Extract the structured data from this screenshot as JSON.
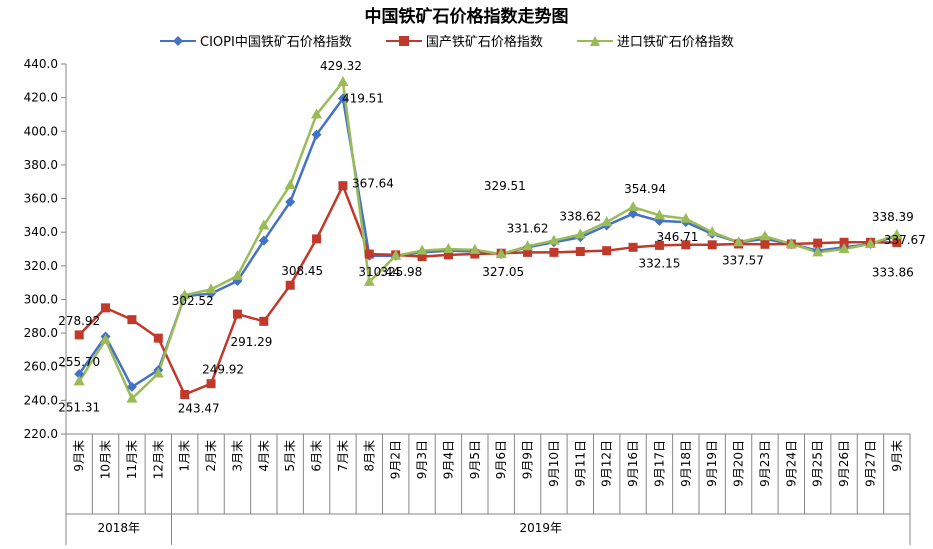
{
  "chart_data": {
    "type": "line",
    "title": "中国铁矿石价格指数走势图",
    "xlabel": "",
    "ylabel": "",
    "ylim": [
      220,
      440
    ],
    "yticks": [
      "220.0",
      "240.0",
      "260.0",
      "280.0",
      "300.0",
      "320.0",
      "340.0",
      "360.0",
      "380.0",
      "400.0",
      "420.0",
      "440.0"
    ],
    "grid": false,
    "legend_position": "top",
    "categories": [
      "9月末",
      "10月末",
      "11月末",
      "12月末",
      "1月末",
      "2月末",
      "3月末",
      "4月末",
      "5月末",
      "6月末",
      "7月末",
      "8月末",
      "9月2日",
      "9月3日",
      "9月4日",
      "9月5日",
      "9月6日",
      "9月9日",
      "9月10日",
      "9月11日",
      "9月12日",
      "9月16日",
      "9月17日",
      "9月18日",
      "9月19日",
      "9月20日",
      "9月23日",
      "9月24日",
      "9月25日",
      "9月26日",
      "9月27日",
      "9月末"
    ],
    "year_groups": [
      {
        "label": "2018年",
        "start": 0,
        "end": 3
      },
      {
        "label": "2019年",
        "start": 4,
        "end": 31
      }
    ],
    "series": [
      {
        "name": "CIOPI中国铁矿石价格指数",
        "color": "#4472C4",
        "marker": "diamond",
        "values": [
          255.7,
          278.0,
          248.0,
          258.0,
          302.0,
          303.5,
          311.0,
          335.0,
          358.0,
          398.0,
          419.51,
          325.98,
          326.0,
          328.0,
          329.0,
          328.5,
          327.05,
          331.0,
          334.0,
          337.0,
          344.0,
          351.0,
          346.71,
          346.0,
          339.0,
          334.0,
          336.0,
          333.0,
          329.0,
          331.0,
          333.0,
          337.67
        ]
      },
      {
        "name": "国产铁矿石价格指数",
        "color": "#C0392B",
        "marker": "square",
        "values": [
          278.92,
          295.0,
          288.0,
          277.0,
          243.47,
          249.92,
          291.29,
          287.0,
          308.45,
          336.0,
          367.64,
          327.0,
          326.5,
          325.5,
          326.5,
          327.0,
          327.5,
          328.0,
          328.0,
          328.5,
          329.0,
          331.0,
          332.15,
          332.5,
          332.5,
          333.0,
          332.8,
          333.0,
          333.5,
          334.0,
          334.0,
          333.86
        ]
      },
      {
        "name": "进口铁矿石价格指数",
        "color": "#9BBB59",
        "marker": "triangle",
        "values": [
          251.31,
          276.0,
          241.0,
          256.0,
          302.52,
          306.0,
          314.0,
          344.0,
          368.0,
          410.0,
          429.32,
          310.44,
          326.0,
          329.0,
          330.0,
          329.51,
          327.0,
          331.62,
          335.0,
          338.62,
          346.0,
          354.94,
          350.0,
          348.0,
          340.0,
          334.0,
          337.57,
          333.0,
          328.0,
          330.0,
          333.0,
          338.39
        ]
      }
    ],
    "annotations": [
      {
        "text": "255.70",
        "series": 0,
        "index": 0
      },
      {
        "text": "278.92",
        "series": 1,
        "index": 0
      },
      {
        "text": "251.31",
        "series": 2,
        "index": 0
      },
      {
        "text": "302.52",
        "series": 2,
        "index": 4
      },
      {
        "text": "243.47",
        "series": 1,
        "index": 4
      },
      {
        "text": "249.92",
        "series": 1,
        "index": 5
      },
      {
        "text": "291.29",
        "series": 1,
        "index": 6
      },
      {
        "text": "308.45",
        "series": 1,
        "index": 8
      },
      {
        "text": "429.32",
        "series": 2,
        "index": 10
      },
      {
        "text": "419.51",
        "series": 0,
        "index": 10
      },
      {
        "text": "367.64",
        "series": 1,
        "index": 10
      },
      {
        "text": "329.51",
        "series": 2,
        "index": 15
      },
      {
        "text": "310.44",
        "series": 2,
        "index": 11
      },
      {
        "text": "325.98",
        "series": 0,
        "index": 11
      },
      {
        "text": "327.05",
        "series": 0,
        "index": 16
      },
      {
        "text": "331.62",
        "series": 2,
        "index": 17
      },
      {
        "text": "338.62",
        "series": 2,
        "index": 19
      },
      {
        "text": "354.94",
        "series": 2,
        "index": 21
      },
      {
        "text": "346.71",
        "series": 0,
        "index": 22
      },
      {
        "text": "332.15",
        "series": 1,
        "index": 22
      },
      {
        "text": "337.57",
        "series": 2,
        "index": 26
      },
      {
        "text": "338.39",
        "series": 2,
        "index": 31
      },
      {
        "text": "337.67",
        "series": 0,
        "index": 31
      },
      {
        "text": "333.86",
        "series": 1,
        "index": 31
      }
    ]
  }
}
